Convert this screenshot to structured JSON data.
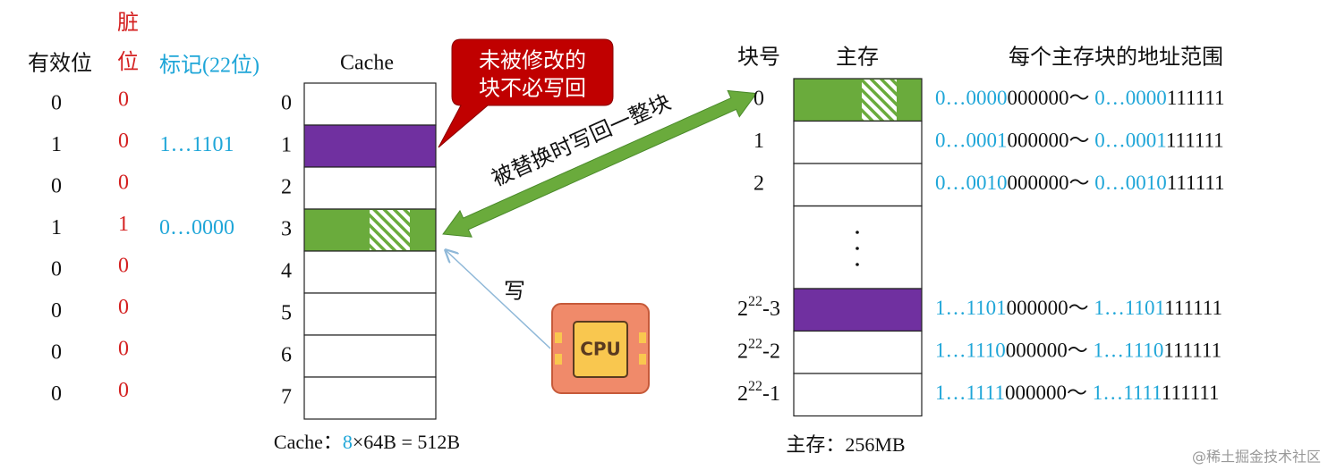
{
  "left_headers": {
    "valid": "有效位",
    "dirty": "脏位",
    "tag": "标记(22位)"
  },
  "cache": {
    "title": "Cache",
    "lines": [
      {
        "index": "0",
        "valid": "0",
        "dirty": "0"
      },
      {
        "index": "1",
        "valid": "1",
        "dirty": "0",
        "tag": "1…1101",
        "fill": "#7030a0"
      },
      {
        "index": "2",
        "valid": "0",
        "dirty": "0"
      },
      {
        "index": "3",
        "valid": "1",
        "dirty": "1",
        "tag": "0…0000",
        "fill": "#6aab3c",
        "hatch": true
      },
      {
        "index": "4",
        "valid": "0",
        "dirty": "0"
      },
      {
        "index": "5",
        "valid": "0",
        "dirty": "0"
      },
      {
        "index": "6",
        "valid": "0",
        "dirty": "0"
      },
      {
        "index": "7",
        "valid": "0",
        "dirty": "0"
      }
    ]
  },
  "cache_caption": [
    "Cache：",
    "8",
    "×64B = 512B"
  ],
  "callout": [
    "未被修改的",
    "块不必写回"
  ],
  "writeback_label": "被替换时写回一整块",
  "write_label": "写",
  "cpu_label": "CPU",
  "memory": {
    "block_header": "块号",
    "title": "主存",
    "range_header": "每个主存块的地址范围",
    "blocks": [
      {
        "number": "0",
        "fill": "#6aab3c",
        "hatch": true,
        "range": [
          "0…0000",
          "000000～ ",
          "0…0000",
          "111111"
        ]
      },
      {
        "number": "1",
        "range": [
          "0…0001",
          "000000～ ",
          "0…0001",
          "111111"
        ]
      },
      {
        "number": "2",
        "range": [
          "0…0010",
          "000000～ ",
          "0…0010",
          "111111"
        ]
      },
      {
        "number": {
          "base": "2",
          "exp": "22",
          "rest": "-3"
        },
        "fill": "#7030a0",
        "range": [
          "1…1101",
          "000000～ ",
          "1…1101",
          "111111"
        ]
      },
      {
        "number": {
          "base": "2",
          "exp": "22",
          "rest": "-2"
        },
        "range": [
          "1…1110",
          "000000～ ",
          "1…1110",
          "111111"
        ]
      },
      {
        "number": {
          "base": "2",
          "exp": "22",
          "rest": "-1"
        },
        "range": [
          "1…1111",
          "000000～ ",
          "1…1111",
          "111111"
        ]
      }
    ]
  },
  "memory_caption": "主存：256MB",
  "watermark": "@稀土掘金技术社区"
}
